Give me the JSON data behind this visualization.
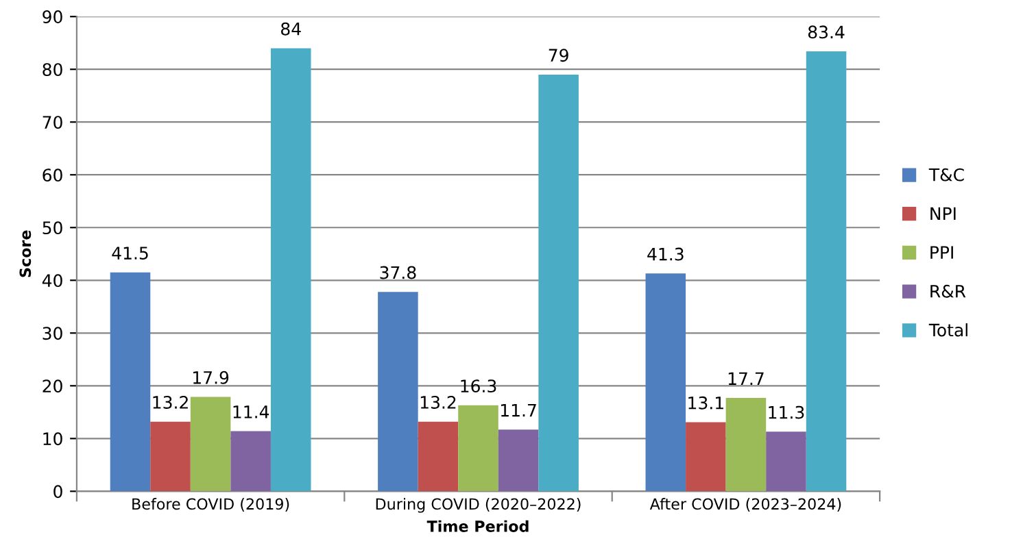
{
  "chart_data": {
    "type": "bar",
    "xlabel": "Time Period",
    "ylabel": "Score",
    "categories": [
      "Before COVID (2019)",
      "During COVID (2020–2022)",
      "After COVID (2023–2024)"
    ],
    "series": [
      {
        "name": "T&C",
        "color": "#4f7fbf",
        "values": [
          41.5,
          37.8,
          41.3
        ]
      },
      {
        "name": "NPI",
        "color": "#c0504d",
        "values": [
          13.2,
          13.2,
          13.1
        ]
      },
      {
        "name": "PPI",
        "color": "#9bbb59",
        "values": [
          17.9,
          16.3,
          17.7
        ]
      },
      {
        "name": "R&R",
        "color": "#8064a2",
        "values": [
          11.4,
          11.7,
          11.3
        ]
      },
      {
        "name": "Total",
        "color": "#4bacc6",
        "values": [
          84,
          79,
          83.4
        ]
      }
    ],
    "ylim": [
      0,
      90
    ],
    "yticks": [
      0,
      10,
      20,
      30,
      40,
      50,
      60,
      70,
      80,
      90
    ],
    "grid": "y",
    "legend": "right",
    "data_labels": true
  }
}
